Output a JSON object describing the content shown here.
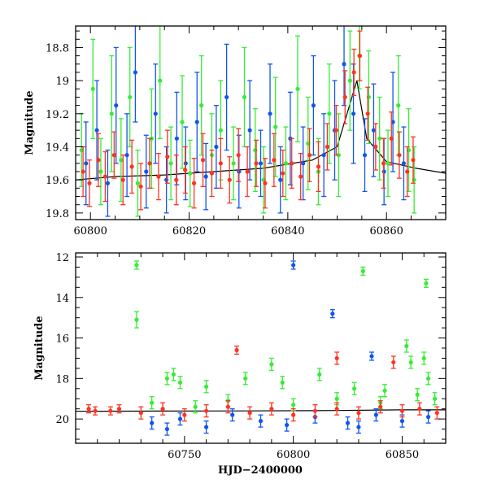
{
  "colors": {
    "green": "#33ee33",
    "blue": "#1155ee",
    "red": "#ff3322",
    "model": "#000000"
  },
  "chart_data": [
    {
      "type": "scatter",
      "title": "",
      "xlabel": "",
      "ylabel": "Magnitude",
      "xlim": [
        60797,
        60872
      ],
      "ylim": [
        19.84,
        18.67
      ],
      "y_inverted": true,
      "grid": false,
      "xticks": [
        60800,
        60820,
        60840,
        60860
      ],
      "yticks": [
        18.8,
        19,
        19.2,
        19.4,
        19.6,
        19.8
      ],
      "xtick_labels": [
        "60800",
        "60820",
        "60840",
        "60860"
      ],
      "ytick_labels": [
        "18.8",
        "19",
        "19.2",
        "19.4",
        "19.6",
        "19.8"
      ],
      "series": [
        {
          "color": "green",
          "error_bars": true,
          "points": [
            [
              60798.2,
              19.42,
              0.22
            ],
            [
              60800.5,
              19.05,
              0.3
            ],
            [
              60802.1,
              19.55,
              0.2
            ],
            [
              60804.3,
              19.2,
              0.35
            ],
            [
              60806.2,
              19.48,
              0.25
            ],
            [
              60808.0,
              19.1,
              0.3
            ],
            [
              60809.6,
              19.62,
              0.2
            ],
            [
              60812.4,
              19.35,
              0.3
            ],
            [
              60814.1,
              19.0,
              0.35
            ],
            [
              60816.3,
              19.5,
              0.22
            ],
            [
              60818.6,
              19.25,
              0.28
            ],
            [
              60820.2,
              19.56,
              0.2
            ],
            [
              60822.5,
              19.15,
              0.3
            ],
            [
              60824.6,
              19.45,
              0.25
            ],
            [
              60826.4,
              19.3,
              0.3
            ],
            [
              60829.0,
              19.5,
              0.22
            ],
            [
              60831.2,
              19.1,
              0.3
            ],
            [
              60833.4,
              19.42,
              0.25
            ],
            [
              60835.1,
              19.6,
              0.2
            ],
            [
              60837.5,
              19.28,
              0.3
            ],
            [
              60839.6,
              19.5,
              0.22
            ],
            [
              60842.0,
              19.05,
              0.32
            ],
            [
              60844.1,
              19.38,
              0.28
            ],
            [
              60846.2,
              19.55,
              0.2
            ],
            [
              60848.4,
              19.2,
              0.3
            ],
            [
              60850.3,
              19.45,
              0.25
            ],
            [
              60852.6,
              19.0,
              0.3
            ],
            [
              60854.5,
              18.85,
              0.2
            ],
            [
              60856.4,
              19.1,
              0.28
            ],
            [
              60858.6,
              19.35,
              0.25
            ],
            [
              60860.3,
              19.5,
              0.2
            ],
            [
              60862.4,
              19.15,
              0.3
            ],
            [
              60864.5,
              19.42,
              0.25
            ],
            [
              60865.6,
              19.6,
              0.2
            ]
          ]
        },
        {
          "color": "blue",
          "error_bars": true,
          "points": [
            [
              60799.1,
              19.5,
              0.25
            ],
            [
              60801.3,
              19.3,
              0.3
            ],
            [
              60803.5,
              19.62,
              0.2
            ],
            [
              60805.2,
              19.15,
              0.35
            ],
            [
              60807.4,
              19.45,
              0.25
            ],
            [
              60809.1,
              18.95,
              0.3
            ],
            [
              60811.3,
              19.55,
              0.22
            ],
            [
              60813.2,
              19.2,
              0.3
            ],
            [
              60815.4,
              19.6,
              0.2
            ],
            [
              60817.5,
              19.35,
              0.28
            ],
            [
              60819.3,
              19.5,
              0.22
            ],
            [
              60821.6,
              19.25,
              0.3
            ],
            [
              60823.4,
              19.58,
              0.2
            ],
            [
              60825.5,
              19.4,
              0.25
            ],
            [
              60827.6,
              19.1,
              0.32
            ],
            [
              60830.1,
              19.55,
              0.22
            ],
            [
              60832.3,
              19.3,
              0.3
            ],
            [
              60834.5,
              19.5,
              0.2
            ],
            [
              60836.4,
              19.2,
              0.3
            ],
            [
              60838.5,
              19.6,
              0.2
            ],
            [
              60840.5,
              19.35,
              0.28
            ],
            [
              60843.1,
              19.5,
              0.22
            ],
            [
              60845.2,
              19.15,
              0.3
            ],
            [
              60847.3,
              19.45,
              0.25
            ],
            [
              60849.5,
              19.3,
              0.3
            ],
            [
              60851.4,
              18.9,
              0.25
            ],
            [
              60853.3,
              19.2,
              0.3
            ],
            [
              60855.6,
              19.45,
              0.22
            ],
            [
              60857.4,
              19.3,
              0.28
            ],
            [
              60859.5,
              19.55,
              0.2
            ],
            [
              60861.3,
              19.25,
              0.3
            ],
            [
              60863.5,
              19.5,
              0.22
            ]
          ]
        },
        {
          "color": "red",
          "error_bars": true,
          "points": [
            [
              60798.5,
              19.55,
              0.15
            ],
            [
              60799.8,
              19.62,
              0.14
            ],
            [
              60801.6,
              19.48,
              0.16
            ],
            [
              60803.0,
              19.58,
              0.15
            ],
            [
              60804.8,
              19.45,
              0.14
            ],
            [
              60806.6,
              19.6,
              0.15
            ],
            [
              60808.4,
              19.52,
              0.16
            ],
            [
              60810.2,
              19.64,
              0.14
            ],
            [
              60812.0,
              19.5,
              0.15
            ],
            [
              60813.8,
              19.58,
              0.14
            ],
            [
              60815.6,
              19.46,
              0.16
            ],
            [
              60817.4,
              19.6,
              0.15
            ],
            [
              60819.2,
              19.54,
              0.14
            ],
            [
              60821.0,
              19.62,
              0.15
            ],
            [
              60822.8,
              19.48,
              0.16
            ],
            [
              60824.6,
              19.56,
              0.14
            ],
            [
              60826.4,
              19.5,
              0.15
            ],
            [
              60828.2,
              19.6,
              0.14
            ],
            [
              60830.0,
              19.45,
              0.16
            ],
            [
              60831.8,
              19.55,
              0.15
            ],
            [
              60833.6,
              19.5,
              0.14
            ],
            [
              60835.4,
              19.62,
              0.15
            ],
            [
              60837.2,
              19.48,
              0.16
            ],
            [
              60839.0,
              19.56,
              0.14
            ],
            [
              60840.8,
              19.5,
              0.15
            ],
            [
              60842.6,
              19.58,
              0.14
            ],
            [
              60844.4,
              19.45,
              0.16
            ],
            [
              60846.2,
              19.52,
              0.15
            ],
            [
              60848.0,
              19.4,
              0.14
            ],
            [
              60849.8,
              19.3,
              0.15
            ],
            [
              60851.6,
              19.1,
              0.16
            ],
            [
              60853.4,
              18.95,
              0.14
            ],
            [
              60854.6,
              18.85,
              0.15
            ],
            [
              60856.2,
              19.2,
              0.16
            ],
            [
              60857.8,
              19.4,
              0.14
            ],
            [
              60859.4,
              19.5,
              0.15
            ],
            [
              60861.0,
              19.35,
              0.16
            ],
            [
              60862.6,
              19.45,
              0.14
            ],
            [
              60864.2,
              19.55,
              0.15
            ],
            [
              60865.4,
              19.48,
              0.14
            ]
          ]
        }
      ],
      "model_curve": [
        [
          60797,
          19.6
        ],
        [
          60805,
          19.58
        ],
        [
          60815,
          19.57
        ],
        [
          60825,
          19.55
        ],
        [
          60835,
          19.53
        ],
        [
          60845,
          19.48
        ],
        [
          60850,
          19.4
        ],
        [
          60852,
          19.2
        ],
        [
          60854,
          19.0
        ],
        [
          60856,
          19.35
        ],
        [
          60860,
          19.49
        ],
        [
          60866,
          19.53
        ],
        [
          60872,
          19.56
        ]
      ]
    },
    {
      "type": "scatter",
      "title": "",
      "xlabel": "HJD−2400000",
      "ylabel": "Magnitude",
      "xlim": [
        60700,
        60870
      ],
      "ylim": [
        21.2,
        11.8
      ],
      "y_inverted": true,
      "grid": false,
      "xticks": [
        60750,
        60800,
        60850
      ],
      "yticks": [
        12,
        14,
        16,
        18,
        20
      ],
      "xtick_labels": [
        "60750",
        "60800",
        "60850"
      ],
      "ytick_labels": [
        "12",
        "14",
        "16",
        "18",
        "20"
      ],
      "series": [
        {
          "color": "green",
          "error_bars": true,
          "points": [
            [
              60728,
              12.4,
              0.2
            ],
            [
              60728,
              15.1,
              0.4
            ],
            [
              60742,
              18.0,
              0.3
            ],
            [
              60745,
              17.8,
              0.3
            ],
            [
              60748,
              18.2,
              0.3
            ],
            [
              60760,
              18.4,
              0.3
            ],
            [
              60778,
              18.0,
              0.3
            ],
            [
              60790,
              17.3,
              0.3
            ],
            [
              60795,
              18.2,
              0.3
            ],
            [
              60812,
              17.8,
              0.3
            ],
            [
              60828,
              18.5,
              0.3
            ],
            [
              60832,
              12.7,
              0.2
            ],
            [
              60842,
              18.6,
              0.3
            ],
            [
              60852,
              16.4,
              0.3
            ],
            [
              60854,
              17.2,
              0.3
            ],
            [
              60860,
              17.0,
              0.3
            ],
            [
              60861,
              13.3,
              0.2
            ],
            [
              60862,
              18.0,
              0.3
            ],
            [
              60735,
              19.2,
              0.3
            ],
            [
              60755,
              19.4,
              0.3
            ],
            [
              60770,
              19.1,
              0.3
            ],
            [
              60800,
              19.3,
              0.3
            ],
            [
              60820,
              19.0,
              0.3
            ],
            [
              60840,
              19.2,
              0.3
            ],
            [
              60857,
              18.8,
              0.3
            ],
            [
              60865,
              19.0,
              0.3
            ]
          ]
        },
        {
          "color": "blue",
          "error_bars": true,
          "points": [
            [
              60800,
              12.4,
              0.2
            ],
            [
              60818,
              14.8,
              0.2
            ],
            [
              60836,
              16.9,
              0.2
            ],
            [
              60735,
              20.2,
              0.3
            ],
            [
              60748,
              20.0,
              0.3
            ],
            [
              60760,
              20.4,
              0.3
            ],
            [
              60772,
              19.8,
              0.3
            ],
            [
              60785,
              20.1,
              0.3
            ],
            [
              60797,
              20.3,
              0.3
            ],
            [
              60810,
              19.9,
              0.3
            ],
            [
              60825,
              20.2,
              0.3
            ],
            [
              60838,
              19.8,
              0.3
            ],
            [
              60850,
              20.1,
              0.3
            ],
            [
              60862,
              19.9,
              0.3
            ],
            [
              60742,
              20.5,
              0.3
            ],
            [
              60830,
              20.4,
              0.3
            ]
          ]
        },
        {
          "color": "red",
          "error_bars": true,
          "points": [
            [
              60706,
              19.5,
              0.2
            ],
            [
              60709,
              19.6,
              0.2
            ],
            [
              60716,
              19.6,
              0.2
            ],
            [
              60720,
              19.5,
              0.2
            ],
            [
              60774,
              16.6,
              0.2
            ],
            [
              60820,
              17.0,
              0.3
            ],
            [
              60846,
              17.2,
              0.3
            ],
            [
              60730,
              19.7,
              0.3
            ],
            [
              60740,
              19.5,
              0.3
            ],
            [
              60750,
              19.8,
              0.3
            ],
            [
              60760,
              19.6,
              0.3
            ],
            [
              60770,
              19.4,
              0.3
            ],
            [
              60780,
              19.7,
              0.3
            ],
            [
              60790,
              19.5,
              0.3
            ],
            [
              60800,
              19.8,
              0.3
            ],
            [
              60810,
              19.6,
              0.3
            ],
            [
              60820,
              19.5,
              0.3
            ],
            [
              60830,
              19.7,
              0.3
            ],
            [
              60840,
              19.4,
              0.3
            ],
            [
              60850,
              19.6,
              0.3
            ],
            [
              60858,
              19.5,
              0.3
            ],
            [
              60866,
              19.7,
              0.3
            ]
          ]
        }
      ],
      "model_curve": [
        [
          60700,
          19.62
        ],
        [
          60740,
          19.61
        ],
        [
          60780,
          19.6
        ],
        [
          60820,
          19.58
        ],
        [
          60850,
          19.55
        ],
        [
          60870,
          19.55
        ]
      ]
    }
  ]
}
